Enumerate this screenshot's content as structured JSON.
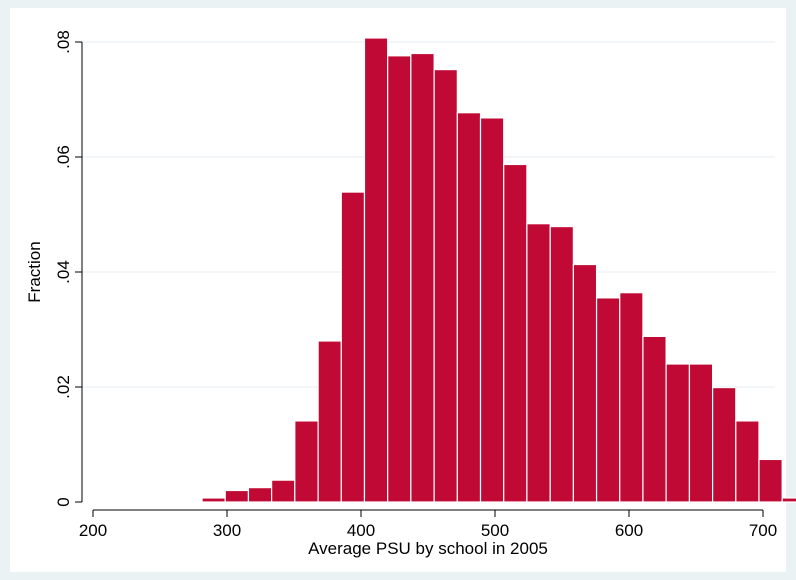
{
  "chart_data": {
    "type": "bar",
    "title": "",
    "xlabel": "Average PSU by school in 2005",
    "ylabel": "Fraction",
    "xlim": [
      200,
      700
    ],
    "ylim": [
      0,
      0.08
    ],
    "x_ticks": [
      200,
      300,
      400,
      500,
      600,
      700
    ],
    "x_tick_labels": [
      "200",
      "300",
      "400",
      "500",
      "600",
      "700"
    ],
    "y_ticks": [
      0,
      0.02,
      0.04,
      0.06,
      0.08
    ],
    "y_tick_labels": [
      "0",
      ".02",
      ".04",
      ".06",
      ".08"
    ],
    "grid": true,
    "bar_color": "#c00a35",
    "bins": [
      {
        "start": 212.1,
        "end": 229.4,
        "value": 0.0002
      },
      {
        "start": 229.4,
        "end": 246.7,
        "value": 0.0
      },
      {
        "start": 246.7,
        "end": 264.1,
        "value": 0.0
      },
      {
        "start": 264.1,
        "end": 281.4,
        "value": 0.0002
      },
      {
        "start": 281.4,
        "end": 298.7,
        "value": 0.0007
      },
      {
        "start": 298.7,
        "end": 316.0,
        "value": 0.002
      },
      {
        "start": 316.0,
        "end": 333.3,
        "value": 0.0025
      },
      {
        "start": 333.3,
        "end": 350.6,
        "value": 0.0038
      },
      {
        "start": 350.6,
        "end": 368.0,
        "value": 0.0141
      },
      {
        "start": 368.0,
        "end": 385.3,
        "value": 0.028
      },
      {
        "start": 385.3,
        "end": 402.6,
        "value": 0.0539
      },
      {
        "start": 402.6,
        "end": 419.9,
        "value": 0.0807
      },
      {
        "start": 419.9,
        "end": 437.2,
        "value": 0.0776
      },
      {
        "start": 437.2,
        "end": 454.6,
        "value": 0.078
      },
      {
        "start": 454.6,
        "end": 471.9,
        "value": 0.0752
      },
      {
        "start": 471.9,
        "end": 489.2,
        "value": 0.0677
      },
      {
        "start": 489.2,
        "end": 506.5,
        "value": 0.0668
      },
      {
        "start": 506.5,
        "end": 523.8,
        "value": 0.0587
      },
      {
        "start": 523.8,
        "end": 541.2,
        "value": 0.0484
      },
      {
        "start": 541.2,
        "end": 558.5,
        "value": 0.0479
      },
      {
        "start": 558.5,
        "end": 575.8,
        "value": 0.0413
      },
      {
        "start": 575.8,
        "end": 593.1,
        "value": 0.0355
      },
      {
        "start": 593.1,
        "end": 610.4,
        "value": 0.0364
      },
      {
        "start": 610.4,
        "end": 627.7,
        "value": 0.0288
      },
      {
        "start": 627.7,
        "end": 645.1,
        "value": 0.024
      },
      {
        "start": 645.1,
        "end": 662.4,
        "value": 0.024
      },
      {
        "start": 662.4,
        "end": 679.7,
        "value": 0.0199
      },
      {
        "start": 679.7,
        "end": 697.0,
        "value": 0.0141
      },
      {
        "start": 697.0,
        "end": 714.3,
        "value": 0.0074
      },
      {
        "start": 714.3,
        "end": 731.7,
        "value": 0.0007
      },
      {
        "start": 731.7,
        "end": 749.0,
        "value": 0.0019
      }
    ]
  }
}
